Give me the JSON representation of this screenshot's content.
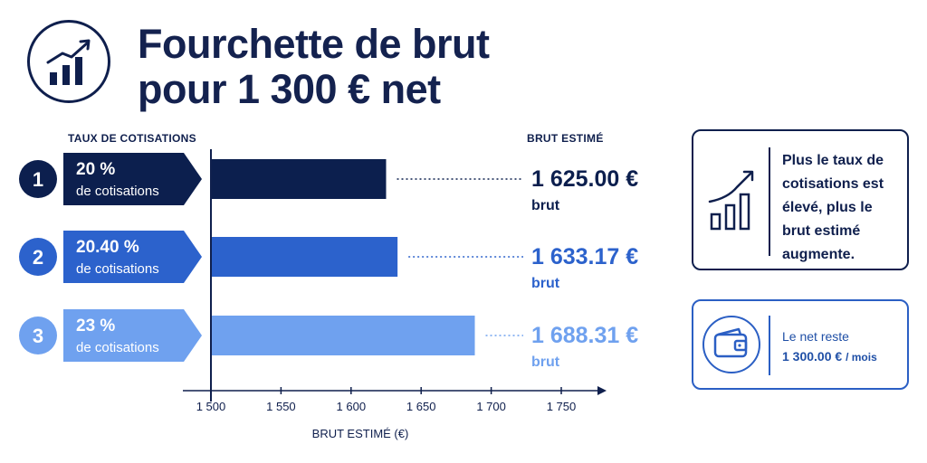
{
  "header": {
    "title_line1": "Fourchette de brut",
    "title_line2": "pour 1 300 € net",
    "icon": "trend-up-bar-chart-icon"
  },
  "columns": {
    "left": "TAUX DE COTISATIONS",
    "right": "BRUT ESTIMÉ"
  },
  "chart_data": {
    "type": "bar",
    "orientation": "horizontal",
    "categories": [
      "1",
      "2",
      "3"
    ],
    "rates": [
      "20 %",
      "20.40 %",
      "23 %"
    ],
    "rate_suffix": "de cotisations",
    "values": [
      1625.0,
      1633.17,
      1688.31
    ],
    "value_labels": [
      "1 625.00 €",
      "1 633.17 €",
      "1 688.31 €"
    ],
    "value_suffix": "brut",
    "colors": [
      "#0c1f4e",
      "#2c62cc",
      "#6fa1ef"
    ],
    "xlim": [
      1500,
      1750
    ],
    "xticks": [
      1500,
      1550,
      1600,
      1650,
      1700,
      1750
    ],
    "xtick_labels": [
      "1 500",
      "1 550",
      "1 600",
      "1 650",
      "1 700",
      "1 750"
    ],
    "xlabel": "BRUT ESTIMÉ (€)"
  },
  "notes": [
    {
      "icon": "trend-up-bar-chart-icon",
      "lines": [
        "Plus le taux de",
        "cotisations est",
        "élevé, plus le",
        "brut estimé",
        "augmente."
      ]
    },
    {
      "icon": "wallet-icon",
      "line1": "Le net reste",
      "value": "1 300.00 €",
      "unit": "/ mois"
    }
  ]
}
